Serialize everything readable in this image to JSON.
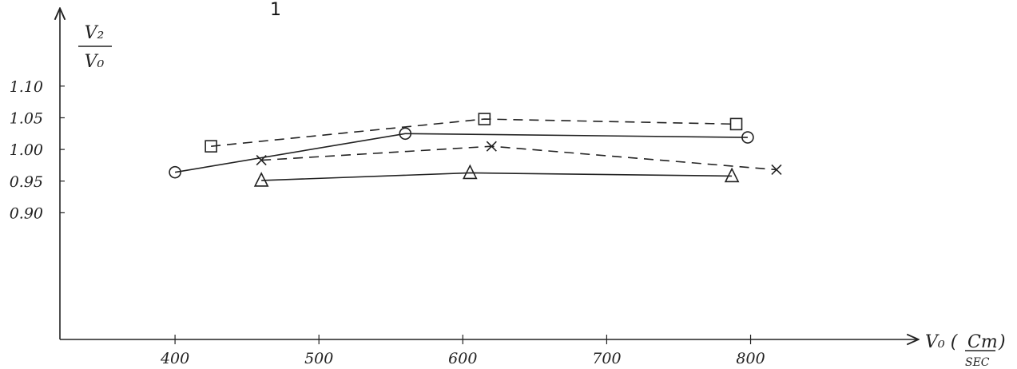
{
  "figure_number": "1",
  "chart_data": {
    "type": "line",
    "ylabel": {
      "numerator": "V₂",
      "denominator": "V₀"
    },
    "xlabel": {
      "main": "V₀ (",
      "unit_num": "Cm",
      "close": ")",
      "unit_den": "SEC"
    },
    "x_ticks": [
      400,
      500,
      600,
      700,
      800
    ],
    "x_tick_labels": [
      "400",
      "500",
      "600",
      "700",
      "800"
    ],
    "y_ticks": [
      0.9,
      0.95,
      1.0,
      1.05,
      1.1
    ],
    "y_tick_labels": [
      "0.90",
      "0.95",
      "1.00",
      "1.05",
      "1.10"
    ],
    "xlim": [
      320,
      880
    ],
    "ylim": [
      0.7,
      1.2
    ],
    "grid": false,
    "series": [
      {
        "marker": "square",
        "dash": true,
        "x": [
          425,
          615,
          790
        ],
        "y": [
          1.005,
          1.048,
          1.04
        ]
      },
      {
        "marker": "circle",
        "dash": false,
        "x": [
          400,
          560,
          798
        ],
        "y": [
          0.964,
          1.025,
          1.019
        ]
      },
      {
        "marker": "x",
        "dash": true,
        "x": [
          460,
          620,
          818
        ],
        "y": [
          0.983,
          1.005,
          0.968
        ]
      },
      {
        "marker": "triangle",
        "dash": false,
        "x": [
          460,
          605,
          787
        ],
        "y": [
          0.951,
          0.963,
          0.958
        ]
      }
    ]
  }
}
